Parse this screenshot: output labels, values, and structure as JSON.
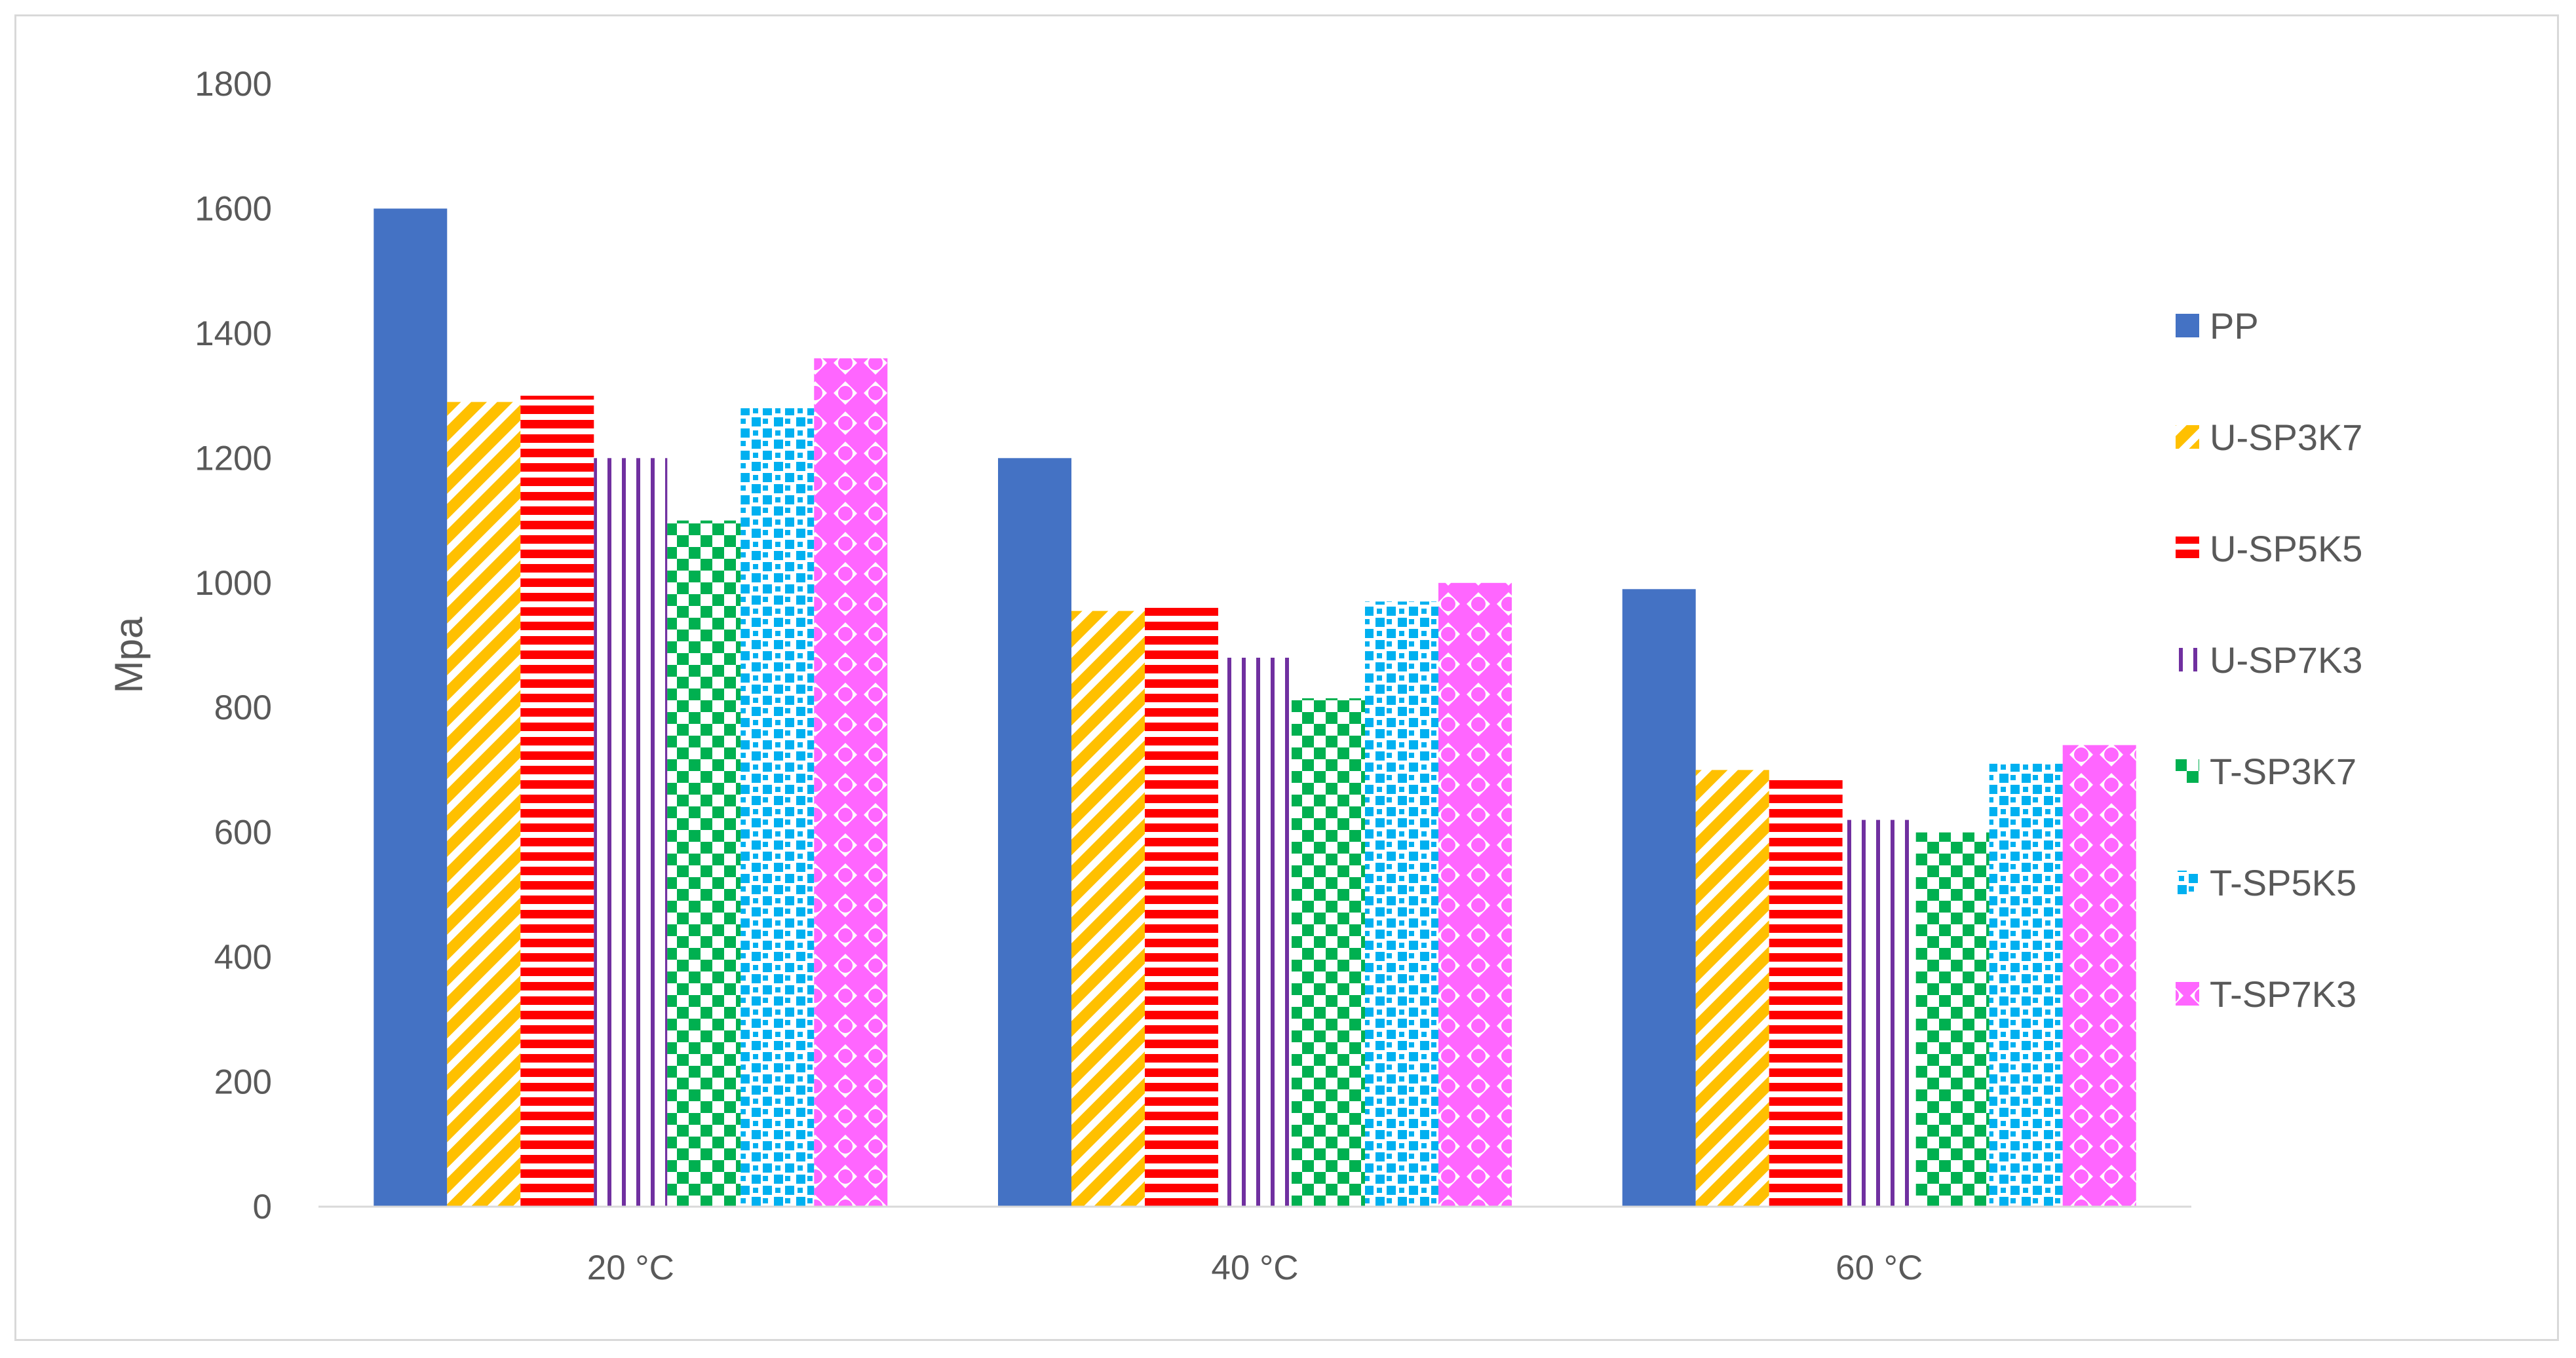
{
  "chart_data": {
    "type": "bar",
    "title": "",
    "xlabel": "",
    "ylabel": "Mpa",
    "ylim": [
      0,
      1800
    ],
    "yticks": [
      0,
      200,
      400,
      600,
      800,
      1000,
      1200,
      1400,
      1600,
      1800
    ],
    "grid": false,
    "legend_position": "right",
    "categories": [
      "20 °C",
      "40 °C",
      "60 °C"
    ],
    "series": [
      {
        "name": "PP",
        "values": [
          1600,
          1200,
          990
        ],
        "color": "#4472C4",
        "pattern": "solid"
      },
      {
        "name": "U-SP3K7",
        "values": [
          1290,
          955,
          700
        ],
        "color": "#FFC000",
        "pattern": "diagonal-stripes"
      },
      {
        "name": "U-SP5K5",
        "values": [
          1300,
          960,
          685
        ],
        "color": "#FF0000",
        "pattern": "horizontal-stripes"
      },
      {
        "name": "U-SP7K3",
        "values": [
          1200,
          880,
          620
        ],
        "color": "#7030A0",
        "pattern": "vertical-lines"
      },
      {
        "name": "T-SP3K7",
        "values": [
          1100,
          815,
          600
        ],
        "color": "#00B050",
        "pattern": "checkerboard"
      },
      {
        "name": "T-SP5K5",
        "values": [
          1280,
          970,
          710
        ],
        "color": "#00B0F0",
        "pattern": "confetti"
      },
      {
        "name": "T-SP7K3",
        "values": [
          1360,
          1000,
          740
        ],
        "color": "#FF66FF",
        "pattern": "diamond-dots"
      }
    ]
  }
}
